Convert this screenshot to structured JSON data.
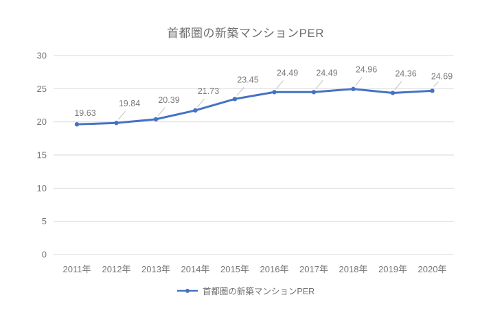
{
  "chart_data": {
    "type": "line",
    "title": "首都圏の新築マンションPER",
    "categories": [
      "2011年",
      "2012年",
      "2013年",
      "2014年",
      "2015年",
      "2016年",
      "2017年",
      "2018年",
      "2019年",
      "2020年"
    ],
    "series": [
      {
        "name": "首都圏の新築マンションPER",
        "values": [
          19.63,
          19.84,
          20.39,
          21.73,
          23.45,
          24.49,
          24.49,
          24.96,
          24.36,
          24.69
        ]
      }
    ],
    "data_labels": [
      "19.63",
      "19.84",
      "20.39",
      "21.73",
      "23.45",
      "24.49",
      "24.49",
      "24.96",
      "24.36",
      "24.69"
    ],
    "ylim": [
      0,
      30
    ],
    "ytick_step": 5,
    "ytick_labels": [
      "0",
      "5",
      "10",
      "15",
      "20",
      "25",
      "30"
    ],
    "grid": true,
    "legend_position": "bottom",
    "colors": {
      "line": "#4472C4",
      "marker": "#4472C4",
      "grid": "#d9d9d9",
      "axis_text": "#757575",
      "data_label": "#7a7a7a",
      "leader_line": "#c0c0c0",
      "title": "#6f6f6f",
      "background": "#ffffff"
    }
  }
}
